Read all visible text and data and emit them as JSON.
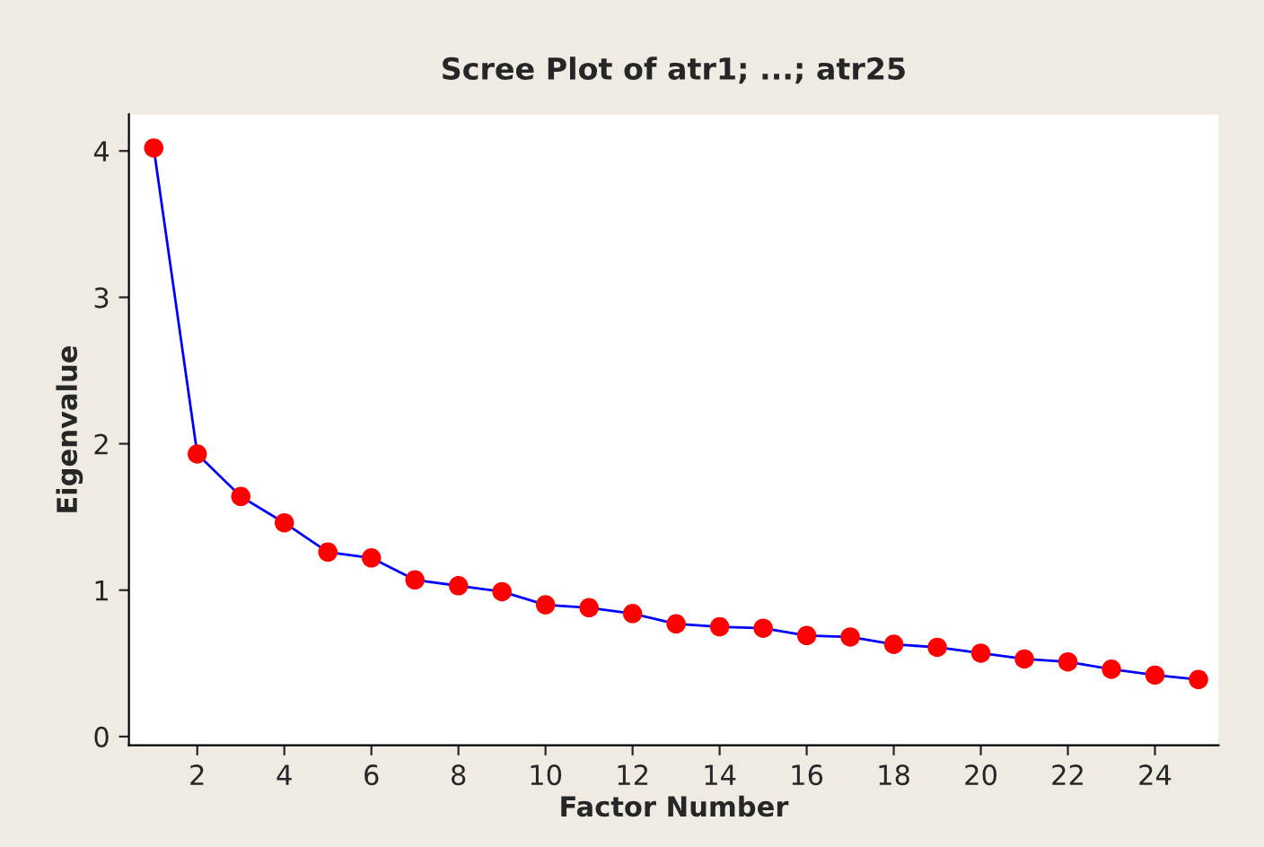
{
  "chart_data": {
    "type": "line",
    "title": "Scree Plot of atr1; ...; atr25",
    "xlabel": "Factor Number",
    "ylabel": "Eigenvalue",
    "x": [
      1,
      2,
      3,
      4,
      5,
      6,
      7,
      8,
      9,
      10,
      11,
      12,
      13,
      14,
      15,
      16,
      17,
      18,
      19,
      20,
      21,
      22,
      23,
      24,
      25
    ],
    "series": [
      {
        "color": "#0000ff",
        "values": [
          4.02,
          1.93,
          1.64,
          1.46,
          1.26,
          1.22,
          1.07,
          1.03,
          0.99,
          0.9,
          0.88,
          0.84,
          0.77,
          0.75,
          0.74,
          0.69,
          0.68,
          0.63,
          0.61,
          0.57,
          0.53,
          0.51,
          0.46,
          0.42,
          0.39
        ]
      }
    ],
    "marker": "circle",
    "line_style": "solid",
    "xlim": [
      0.43,
      25.46
    ],
    "ylim": [
      -0.06,
      4.25
    ],
    "xticks": [
      2,
      4,
      6,
      8,
      10,
      12,
      14,
      16,
      18,
      20,
      22,
      24
    ],
    "yticks": [
      0,
      1,
      2,
      3,
      4
    ]
  }
}
